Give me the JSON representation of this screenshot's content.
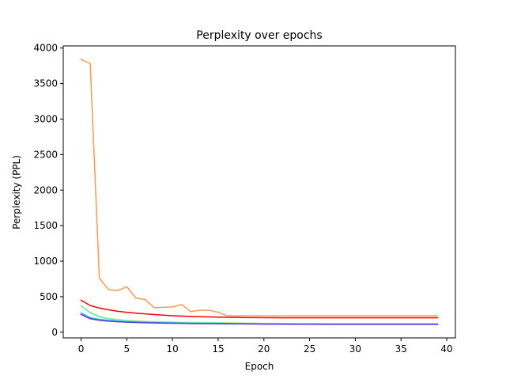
{
  "chart_data": {
    "type": "line",
    "title": "Perplexity over epochs",
    "xlabel": "Epoch",
    "ylabel": "Perplexity (PPL)",
    "xlim": [
      -1.95,
      40.95
    ],
    "ylim": [
      -80,
      4030
    ],
    "xticks": [
      0,
      5,
      10,
      15,
      20,
      25,
      30,
      35,
      40
    ],
    "yticks": [
      0,
      500,
      1000,
      1500,
      2000,
      2500,
      3000,
      3500,
      4000
    ],
    "grid": false,
    "legend": "none",
    "x": [
      0,
      1,
      2,
      3,
      4,
      5,
      6,
      7,
      8,
      9,
      10,
      11,
      12,
      13,
      14,
      15,
      16,
      17,
      18,
      19,
      20,
      21,
      22,
      23,
      24,
      25,
      26,
      27,
      28,
      29,
      30,
      31,
      32,
      33,
      34,
      35,
      36,
      37,
      38,
      39
    ],
    "series": [
      {
        "color": "#ff9a4d",
        "values": [
          3840,
          3780,
          760,
          600,
          585,
          640,
          480,
          460,
          345,
          350,
          355,
          390,
          290,
          310,
          310,
          280,
          230,
          230,
          230,
          230,
          230,
          230,
          230,
          230,
          230,
          230,
          230,
          230,
          230,
          230,
          230,
          230,
          230,
          230,
          230,
          230,
          230,
          230,
          230,
          230
        ]
      },
      {
        "color": "#ff0000",
        "values": [
          450,
          375,
          340,
          315,
          295,
          280,
          268,
          258,
          248,
          240,
          232,
          226,
          222,
          218,
          215,
          212,
          210,
          208,
          206,
          205,
          204,
          204,
          203,
          203,
          203,
          202,
          202,
          202,
          202,
          202,
          202,
          202,
          202,
          202,
          202,
          202,
          202,
          202,
          202,
          202
        ]
      },
      {
        "color": "#b4f07a",
        "values": [
          375,
          280,
          225,
          195,
          180,
          168,
          162,
          155,
          150,
          146,
          143,
          140,
          138,
          137,
          136,
          135,
          133,
          131,
          129,
          127,
          125,
          124,
          123,
          123,
          122,
          122,
          122,
          121,
          121,
          121,
          121,
          121,
          121,
          121,
          121,
          121,
          121,
          121,
          121,
          121
        ]
      },
      {
        "color": "#5ef2c8",
        "values": [
          370,
          270,
          215,
          185,
          170,
          160,
          152,
          146,
          142,
          138,
          135,
          132,
          130,
          130,
          130,
          130,
          122,
          122,
          122,
          120,
          118,
          117,
          116,
          116,
          115,
          115,
          115,
          114,
          114,
          114,
          114,
          114,
          114,
          114,
          114,
          114,
          114,
          114,
          114,
          114
        ]
      },
      {
        "color": "#35a9f0",
        "values": [
          270,
          205,
          180,
          165,
          155,
          148,
          143,
          139,
          136,
          133,
          131,
          129,
          127,
          126,
          125,
          124,
          123,
          121,
          120,
          119,
          118,
          117,
          116,
          116,
          115,
          115,
          115,
          114,
          114,
          114,
          114,
          114,
          114,
          114,
          114,
          114,
          114,
          114,
          114,
          114
        ]
      },
      {
        "color": "#5a3dd8",
        "values": [
          250,
          190,
          168,
          155,
          147,
          141,
          137,
          133,
          130,
          128,
          126,
          124,
          122,
          121,
          120,
          119,
          118,
          117,
          116,
          115,
          114,
          113,
          113,
          112,
          112,
          112,
          111,
          111,
          111,
          111,
          111,
          111,
          111,
          111,
          111,
          111,
          111,
          111,
          111,
          111
        ]
      }
    ]
  }
}
